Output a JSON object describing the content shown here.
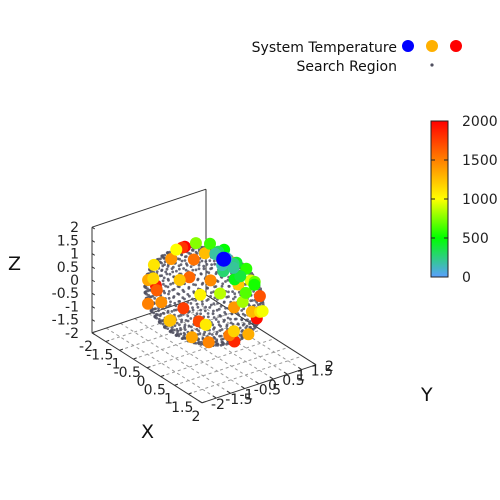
{
  "chart_data": {
    "type": "scatter",
    "projection": "3d",
    "xlabel": "X",
    "ylabel": "Y",
    "zlabel": "Z",
    "xlim": [
      -2,
      2
    ],
    "ylim": [
      -2,
      2
    ],
    "zlim": [
      -2,
      2
    ],
    "x_ticks": [
      "-2",
      "-1.5",
      "-1",
      "-0.5",
      "0",
      "0.5",
      "1",
      "1.5",
      "2"
    ],
    "y_ticks": [
      "-2",
      "-1.5",
      "-1",
      "-0.5",
      "0",
      "0.5",
      "1",
      "1.5",
      "2"
    ],
    "z_ticks": [
      "-2",
      "-1.5",
      "-1",
      "-0.5",
      "0",
      "0.5",
      "1",
      "1.5",
      "2"
    ],
    "grid": "base plane",
    "legend": {
      "placement": "top-right",
      "entries": [
        {
          "label": "System Temperature",
          "marker": "circle",
          "colors": [
            "#0000ff",
            "#ffb000",
            "#ff0000"
          ]
        },
        {
          "label": "Search Region",
          "marker": "dot",
          "colors": [
            "#505060"
          ]
        }
      ]
    },
    "colorbar": {
      "min": 0,
      "max": 2000,
      "ticks": [
        "0",
        "500",
        "1000",
        "1500",
        "2000"
      ],
      "stops": [
        "#5a9fff",
        "#00ff00",
        "#ffff00",
        "#ff8000",
        "#ff0000"
      ]
    },
    "series": [
      {
        "name": "Search Region",
        "shape": "sphere",
        "radius": 1.5,
        "center": [
          0,
          0,
          0
        ]
      },
      {
        "name": "System Temperature",
        "points": [
          {
            "x": 0.3,
            "y": 0.4,
            "z": 1.45,
            "t": 0
          },
          {
            "x": 0.2,
            "y": 0.6,
            "z": 1.35,
            "t": 120
          },
          {
            "x": 0.45,
            "y": 0.2,
            "z": 1.4,
            "t": 150
          },
          {
            "x": 0.1,
            "y": 0.3,
            "z": 1.55,
            "t": 180
          },
          {
            "x": 0.55,
            "y": 0.5,
            "z": 1.25,
            "t": 200
          },
          {
            "x": 0.35,
            "y": 0.7,
            "z": 1.2,
            "t": 250
          },
          {
            "x": 0.6,
            "y": 0.1,
            "z": 1.3,
            "t": 280
          },
          {
            "x": 0.0,
            "y": 0.5,
            "z": 1.5,
            "t": 320
          },
          {
            "x": 0.7,
            "y": 0.6,
            "z": 1.0,
            "t": 380
          },
          {
            "x": 0.25,
            "y": 0.9,
            "z": 1.1,
            "t": 420
          },
          {
            "x": 0.8,
            "y": 0.3,
            "z": 1.05,
            "t": 460
          },
          {
            "x": -0.1,
            "y": 0.8,
            "z": 1.4,
            "t": 500
          },
          {
            "x": 0.9,
            "y": 0.9,
            "z": 0.7,
            "t": 540
          },
          {
            "x": 0.4,
            "y": 1.1,
            "z": 0.9,
            "t": 580
          },
          {
            "x": -0.3,
            "y": 0.5,
            "z": 1.6,
            "t": 620
          },
          {
            "x": 1.0,
            "y": 0.5,
            "z": 0.6,
            "t": 660
          },
          {
            "x": 0.6,
            "y": 1.2,
            "z": 0.5,
            "t": 700
          },
          {
            "x": -0.5,
            "y": 0.2,
            "z": 1.6,
            "t": 760
          },
          {
            "x": 1.2,
            "y": 0.2,
            "z": 0.5,
            "t": 820
          },
          {
            "x": 1.0,
            "y": -0.4,
            "z": 0.9,
            "t": 860
          },
          {
            "x": -0.4,
            "y": 1.0,
            "z": 1.0,
            "t": 900
          },
          {
            "x": 0.3,
            "y": 1.35,
            "z": 0.3,
            "t": 940
          },
          {
            "x": 1.3,
            "y": 0.8,
            "z": 0.0,
            "t": 980
          },
          {
            "x": -0.8,
            "y": -0.2,
            "z": 1.3,
            "t": 1000
          },
          {
            "x": 0.8,
            "y": -0.9,
            "z": 0.9,
            "t": 1040
          },
          {
            "x": 1.1,
            "y": -1.0,
            "z": 0.0,
            "t": 1080
          },
          {
            "x": -1.2,
            "y": -0.6,
            "z": 0.6,
            "t": 1100
          },
          {
            "x": 0.9,
            "y": 1.1,
            "z": -0.4,
            "t": 1130
          },
          {
            "x": -0.6,
            "y": -1.2,
            "z": 0.7,
            "t": 1160
          },
          {
            "x": 1.4,
            "y": -0.3,
            "z": -0.3,
            "t": 1180
          },
          {
            "x": -0.2,
            "y": 1.4,
            "z": -0.2,
            "t": 1200
          },
          {
            "x": -1.3,
            "y": 0.4,
            "z": -0.4,
            "t": 1220
          },
          {
            "x": 0.2,
            "y": -1.4,
            "z": -0.3,
            "t": 1240
          },
          {
            "x": -0.9,
            "y": 0.9,
            "z": 0.7,
            "t": 1260
          },
          {
            "x": 0.5,
            "y": 1.2,
            "z": -0.7,
            "t": 1280
          },
          {
            "x": -0.7,
            "y": -0.5,
            "z": -1.2,
            "t": 1300
          },
          {
            "x": 1.2,
            "y": 0.4,
            "z": -0.8,
            "t": 1320
          },
          {
            "x": -1.1,
            "y": -0.9,
            "z": 0.2,
            "t": 1340
          },
          {
            "x": 0.7,
            "y": -1.1,
            "z": -0.7,
            "t": 1360
          },
          {
            "x": -0.3,
            "y": 1.3,
            "z": 0.6,
            "t": 1380
          },
          {
            "x": 1.3,
            "y": -0.2,
            "z": 0.5,
            "t": 1400
          },
          {
            "x": -1.4,
            "y": 0.2,
            "z": 0.4,
            "t": 1420
          },
          {
            "x": 0.0,
            "y": -1.5,
            "z": 0.3,
            "t": 1440
          },
          {
            "x": -0.9,
            "y": 1.1,
            "z": -0.4,
            "t": 1460
          },
          {
            "x": 1.0,
            "y": -0.8,
            "z": -0.8,
            "t": 1480
          },
          {
            "x": -1.0,
            "y": -1.0,
            "z": -0.6,
            "t": 1500
          },
          {
            "x": 0.4,
            "y": 0.5,
            "z": -1.4,
            "t": 1520
          },
          {
            "x": -1.2,
            "y": 0.8,
            "z": 0.3,
            "t": 1560
          },
          {
            "x": 0.3,
            "y": -0.8,
            "z": 1.2,
            "t": 1600
          },
          {
            "x": -1.3,
            "y": -0.4,
            "z": -0.5,
            "t": 1640
          },
          {
            "x": 1.1,
            "y": 0.9,
            "z": 0.4,
            "t": 1680
          },
          {
            "x": -0.5,
            "y": 0.3,
            "z": -1.4,
            "t": 1720
          },
          {
            "x": 0.6,
            "y": -1.3,
            "z": 0.4,
            "t": 1760
          },
          {
            "x": -1.0,
            "y": 0.2,
            "z": 1.1,
            "t": 1800
          },
          {
            "x": 0.9,
            "y": 0.2,
            "z": -1.2,
            "t": 1850
          },
          {
            "x": -0.4,
            "y": -1.3,
            "z": 0.6,
            "t": 1900
          },
          {
            "x": 1.4,
            "y": 0.5,
            "z": -0.1,
            "t": 1950
          },
          {
            "x": -0.8,
            "y": 0.1,
            "z": 1.3,
            "t": 2000
          }
        ]
      }
    ]
  }
}
